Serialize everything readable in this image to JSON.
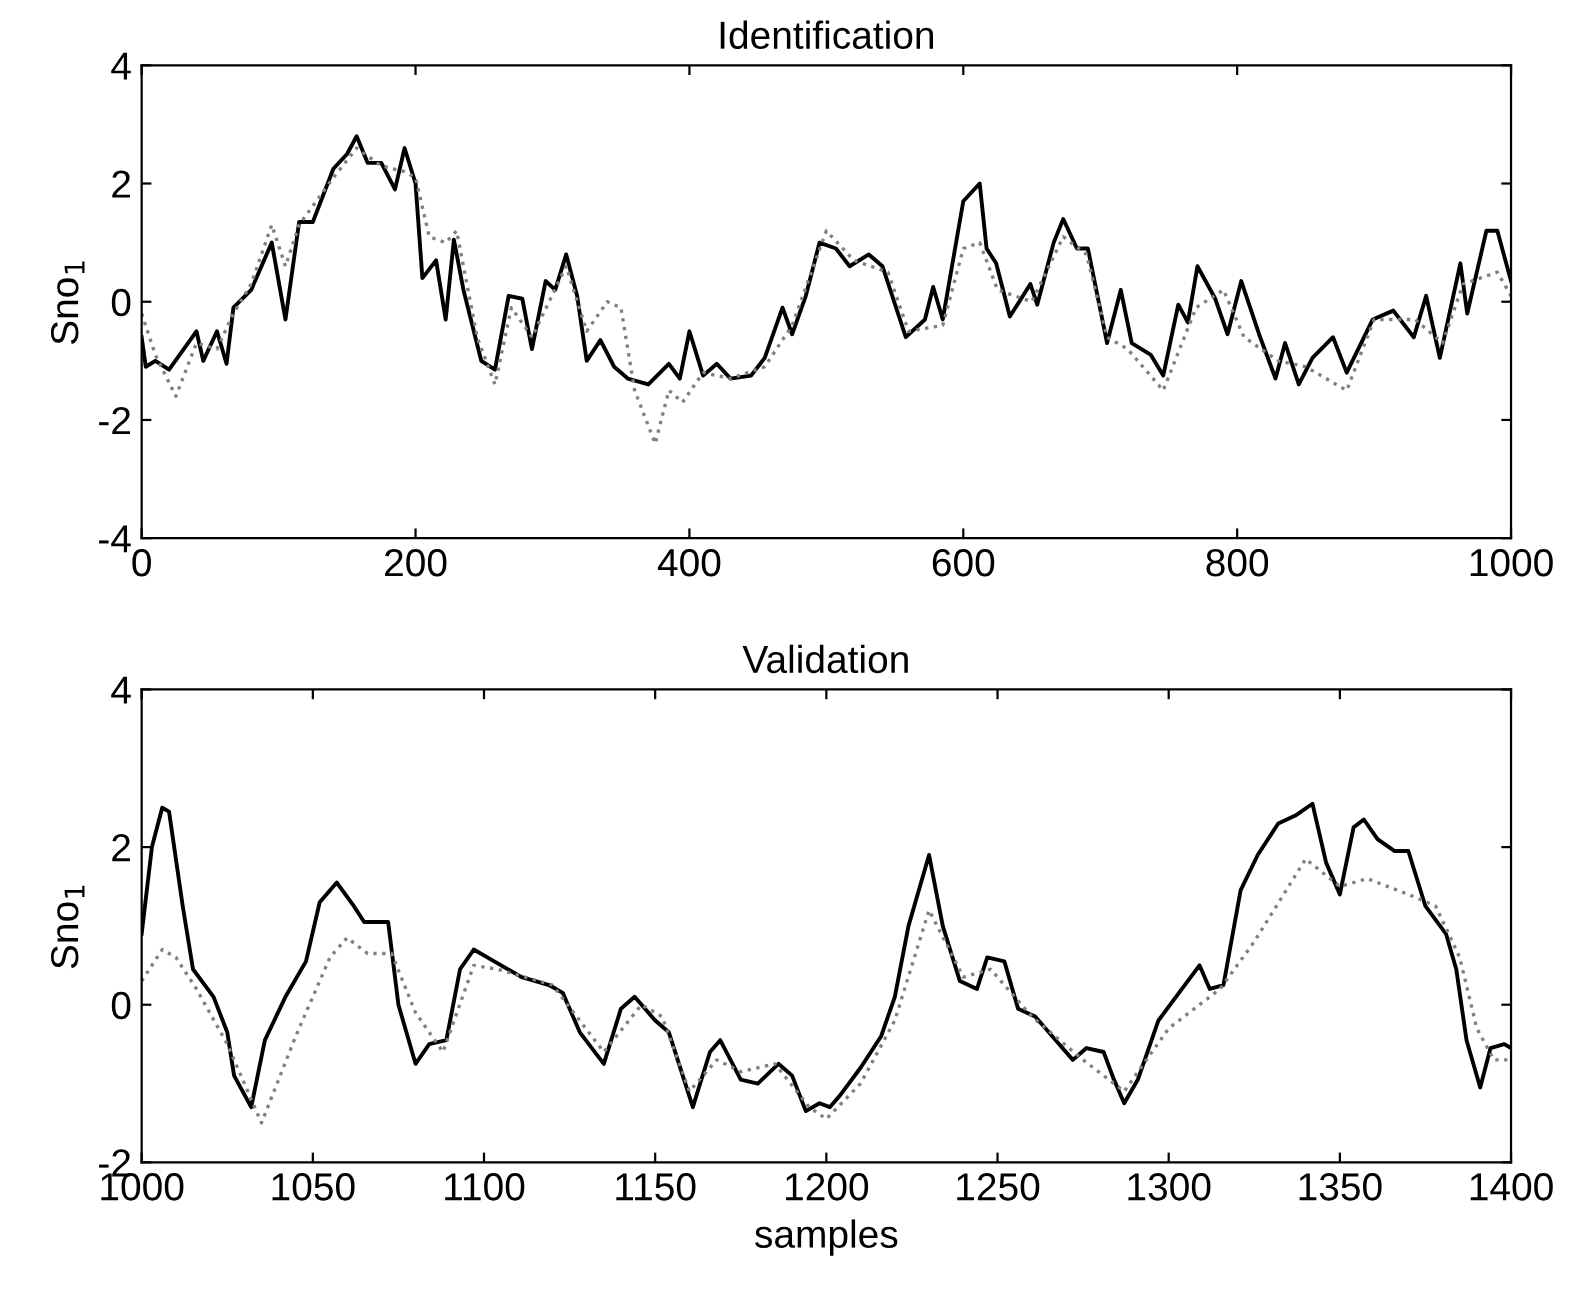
{
  "chart_data": [
    {
      "type": "line",
      "title": "Identification",
      "ylabel": "Sno$_{1}$",
      "xlim": [
        0,
        1000
      ],
      "xticks": [
        0,
        200,
        400,
        600,
        800,
        1000
      ],
      "ylim": [
        -4,
        4
      ],
      "yticks": [
        -4,
        -2,
        0,
        2,
        4
      ],
      "grid": false,
      "legend": false,
      "series": [
        {
          "color": "#000000",
          "line_style": "solid",
          "x": [
            0,
            3,
            10,
            20,
            40,
            45,
            55,
            62,
            67,
            80,
            95,
            105,
            115,
            125,
            140,
            150,
            157,
            165,
            175,
            185,
            192,
            200,
            205,
            215,
            222,
            228,
            235,
            248,
            258,
            268,
            278,
            285,
            295,
            302,
            310,
            318,
            325,
            335,
            345,
            355,
            370,
            385,
            393,
            400,
            410,
            420,
            430,
            445,
            455,
            468,
            475,
            485,
            495,
            507,
            517,
            531,
            541,
            558,
            572,
            578,
            585,
            600,
            612,
            617,
            624,
            634,
            649,
            654,
            666,
            673,
            683,
            691,
            705,
            715,
            723,
            737,
            746,
            757,
            764,
            771,
            784,
            793,
            803,
            816,
            828,
            835,
            845,
            855,
            870,
            880,
            899,
            914,
            929,
            938,
            948,
            963,
            968,
            982,
            990,
            1000
          ],
          "values": [
            -0.6,
            -1.1,
            -1.0,
            -1.15,
            -0.5,
            -1.0,
            -0.5,
            -1.05,
            -0.1,
            0.2,
            1.0,
            -0.3,
            1.35,
            1.35,
            2.25,
            2.5,
            2.8,
            2.35,
            2.35,
            1.9,
            2.6,
            2.0,
            0.4,
            0.7,
            -0.3,
            1.05,
            0.2,
            -1.0,
            -1.15,
            0.1,
            0.05,
            -0.8,
            0.35,
            0.2,
            0.8,
            0.1,
            -1.0,
            -0.65,
            -1.1,
            -1.3,
            -1.4,
            -1.05,
            -1.3,
            -0.5,
            -1.25,
            -1.05,
            -1.3,
            -1.25,
            -0.95,
            -0.1,
            -0.55,
            0.1,
            1.0,
            0.9,
            0.6,
            0.8,
            0.6,
            -0.6,
            -0.3,
            0.25,
            -0.3,
            1.7,
            2.0,
            0.9,
            0.65,
            -0.25,
            0.3,
            -0.05,
            1.0,
            1.4,
            0.9,
            0.9,
            -0.7,
            0.2,
            -0.7,
            -0.9,
            -1.25,
            -0.05,
            -0.35,
            0.6,
            0.05,
            -0.55,
            0.35,
            -0.55,
            -1.3,
            -0.7,
            -1.4,
            -0.95,
            -0.6,
            -1.2,
            -0.3,
            -0.15,
            -0.6,
            0.1,
            -0.95,
            0.65,
            -0.2,
            1.2,
            1.2,
            0.35
          ]
        },
        {
          "color": "#808080",
          "line_style": "dotted",
          "x": [
            0,
            10,
            25,
            40,
            55,
            67,
            80,
            95,
            105,
            115,
            140,
            157,
            175,
            192,
            200,
            210,
            222,
            230,
            245,
            258,
            270,
            285,
            310,
            325,
            340,
            350,
            360,
            375,
            385,
            395,
            410,
            430,
            455,
            475,
            500,
            520,
            545,
            560,
            585,
            600,
            612,
            625,
            650,
            673,
            690,
            705,
            720,
            746,
            770,
            790,
            805,
            830,
            850,
            880,
            900,
            930,
            950,
            965,
            990,
            1000
          ],
          "values": [
            -0.2,
            -0.9,
            -1.6,
            -0.7,
            -0.8,
            -0.2,
            0.3,
            1.3,
            0.6,
            1.3,
            2.1,
            2.6,
            2.3,
            2.2,
            2.1,
            1.1,
            1.0,
            1.2,
            -0.6,
            -1.4,
            -0.1,
            -0.6,
            0.6,
            -0.5,
            0.0,
            -0.1,
            -1.5,
            -2.4,
            -1.5,
            -1.7,
            -1.2,
            -1.3,
            -1.1,
            -0.4,
            1.2,
            0.7,
            0.5,
            -0.5,
            -0.4,
            0.9,
            1.0,
            0.2,
            0.0,
            1.1,
            0.8,
            -0.6,
            -0.8,
            -1.5,
            -0.1,
            0.2,
            -0.6,
            -1.0,
            -1.1,
            -1.5,
            -0.3,
            -0.3,
            -0.7,
            0.3,
            0.5,
            0.1
          ]
        }
      ]
    },
    {
      "type": "line",
      "title": "Validation",
      "ylabel": "Sno$_{1}$",
      "xlabel": "samples",
      "xlim": [
        1000,
        1400
      ],
      "xticks": [
        1000,
        1050,
        1100,
        1150,
        1200,
        1250,
        1300,
        1350,
        1400
      ],
      "ylim": [
        -2,
        4
      ],
      "yticks": [
        -2,
        0,
        2,
        4
      ],
      "grid": false,
      "legend": false,
      "series": [
        {
          "color": "#000000",
          "line_style": "solid",
          "x": [
            1000,
            1003,
            1006,
            1008,
            1012,
            1015,
            1021,
            1025,
            1027,
            1032,
            1036,
            1042,
            1048,
            1052,
            1057,
            1062,
            1065,
            1072,
            1075,
            1080,
            1084,
            1089,
            1093,
            1097,
            1103,
            1111,
            1119,
            1123,
            1128,
            1135,
            1140,
            1144,
            1150,
            1154,
            1161,
            1166,
            1169,
            1172,
            1175,
            1180,
            1186,
            1190,
            1194,
            1198,
            1201,
            1204,
            1210,
            1216,
            1220,
            1224,
            1230,
            1234,
            1239,
            1244,
            1247,
            1252,
            1256,
            1261,
            1267,
            1272,
            1276,
            1281,
            1284,
            1287,
            1291,
            1297,
            1303,
            1309,
            1312,
            1316,
            1321,
            1326,
            1332,
            1337,
            1342,
            1346,
            1350,
            1354,
            1357,
            1361,
            1366,
            1370,
            1375,
            1381,
            1384,
            1387,
            1391,
            1394,
            1398,
            1400
          ],
          "values": [
            0.9,
            2.0,
            2.5,
            2.45,
            1.25,
            0.45,
            0.1,
            -0.35,
            -0.9,
            -1.3,
            -0.45,
            0.1,
            0.55,
            1.3,
            1.55,
            1.25,
            1.05,
            1.05,
            0.0,
            -0.75,
            -0.5,
            -0.45,
            0.45,
            0.7,
            0.55,
            0.35,
            0.25,
            0.15,
            -0.35,
            -0.75,
            -0.05,
            0.1,
            -0.2,
            -0.35,
            -1.3,
            -0.6,
            -0.45,
            -0.7,
            -0.95,
            -1.0,
            -0.75,
            -0.9,
            -1.35,
            -1.25,
            -1.3,
            -1.15,
            -0.8,
            -0.4,
            0.1,
            1.0,
            1.9,
            1.0,
            0.3,
            0.2,
            0.6,
            0.55,
            -0.05,
            -0.15,
            -0.45,
            -0.7,
            -0.55,
            -0.6,
            -0.95,
            -1.25,
            -0.95,
            -0.2,
            0.15,
            0.5,
            0.2,
            0.25,
            1.45,
            1.9,
            2.3,
            2.4,
            2.55,
            1.8,
            1.4,
            2.25,
            2.35,
            2.1,
            1.95,
            1.95,
            1.25,
            0.9,
            0.45,
            -0.45,
            -1.05,
            -0.55,
            -0.5,
            -0.55
          ]
        },
        {
          "color": "#808080",
          "line_style": "dotted",
          "x": [
            1000,
            1006,
            1010,
            1016,
            1025,
            1035,
            1045,
            1055,
            1060,
            1066,
            1073,
            1080,
            1088,
            1097,
            1104,
            1120,
            1135,
            1146,
            1152,
            1160,
            1168,
            1175,
            1185,
            1195,
            1200,
            1210,
            1220,
            1230,
            1240,
            1248,
            1260,
            1275,
            1287,
            1300,
            1315,
            1325,
            1340,
            1350,
            1358,
            1370,
            1378,
            1385,
            1390,
            1395,
            1400
          ],
          "values": [
            0.3,
            0.7,
            0.6,
            0.2,
            -0.5,
            -1.5,
            -0.4,
            0.6,
            0.85,
            0.65,
            0.65,
            -0.1,
            -0.6,
            0.5,
            0.45,
            0.25,
            -0.6,
            0.0,
            -0.15,
            -1.1,
            -0.7,
            -0.85,
            -0.75,
            -1.3,
            -1.45,
            -1.0,
            -0.2,
            1.2,
            0.35,
            0.45,
            -0.15,
            -0.7,
            -1.1,
            -0.3,
            0.2,
            0.8,
            1.85,
            1.5,
            1.6,
            1.4,
            1.25,
            0.6,
            -0.3,
            -0.7,
            -0.7
          ]
        }
      ]
    }
  ]
}
